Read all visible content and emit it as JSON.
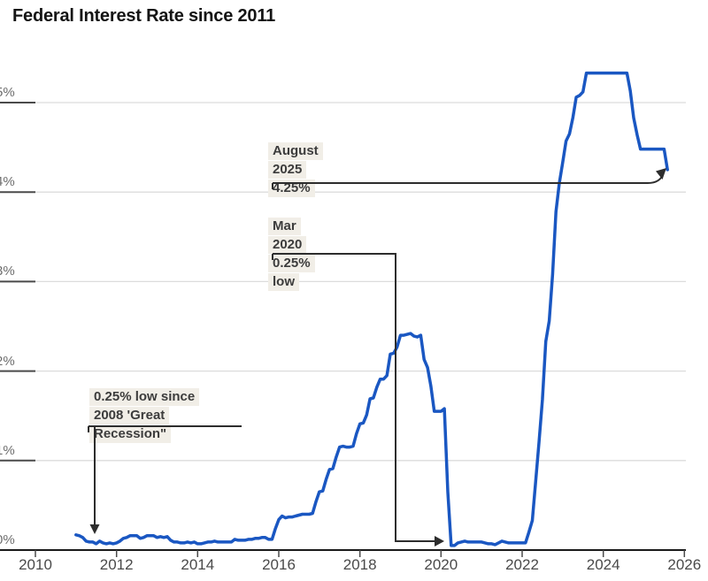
{
  "title": "Federal Interest Rate since 2011",
  "colors": {
    "line": "#1a57c2",
    "grid": "#dcdcdc",
    "axis": "#1a1a1a",
    "tick_segment": "#4a4a4a",
    "y_tick_label": "#6e6e6e",
    "x_tick_label": "#4a4a4a",
    "connector": "#2d2d2d",
    "annotation_text": "#3c3c3c",
    "annotation_bg": "#f1eee7",
    "title_text": "#141414"
  },
  "chart_data": {
    "type": "line",
    "title": "Federal Interest Rate since 2011",
    "xlabel": "",
    "ylabel": "",
    "x_range": [
      2010,
      2026
    ],
    "y_range": [
      0,
      5.5
    ],
    "grid": "horizontal",
    "legend": "none",
    "x_ticks": [
      {
        "label": "2010",
        "value": 2010
      },
      {
        "label": "2012",
        "value": 2012
      },
      {
        "label": "2014",
        "value": 2014
      },
      {
        "label": "2016",
        "value": 2016
      },
      {
        "label": "2018",
        "value": 2018
      },
      {
        "label": "2020",
        "value": 2020
      },
      {
        "label": "2022",
        "value": 2022
      },
      {
        "label": "2024",
        "value": 2024
      },
      {
        "label": "2026",
        "value": 2026
      }
    ],
    "y_ticks": [
      {
        "label": "0%",
        "value": 0
      },
      {
        "label": "1%",
        "value": 1
      },
      {
        "label": "2%",
        "value": 2
      },
      {
        "label": "3%",
        "value": 3
      },
      {
        "label": "4%",
        "value": 4
      },
      {
        "label": "5%",
        "value": 5
      }
    ],
    "series": [
      {
        "name": "Federal interest rate (%)",
        "frequency": "monthly",
        "start_month": "2011-01",
        "end_month": "2025-08",
        "values": [
          0.17,
          0.16,
          0.14,
          0.1,
          0.09,
          0.09,
          0.07,
          0.1,
          0.08,
          0.07,
          0.08,
          0.07,
          0.08,
          0.1,
          0.13,
          0.14,
          0.16,
          0.16,
          0.16,
          0.13,
          0.14,
          0.16,
          0.16,
          0.16,
          0.14,
          0.15,
          0.14,
          0.15,
          0.11,
          0.09,
          0.09,
          0.08,
          0.08,
          0.09,
          0.08,
          0.09,
          0.07,
          0.07,
          0.08,
          0.09,
          0.09,
          0.1,
          0.09,
          0.09,
          0.09,
          0.09,
          0.09,
          0.12,
          0.11,
          0.11,
          0.11,
          0.12,
          0.12,
          0.13,
          0.13,
          0.14,
          0.14,
          0.12,
          0.12,
          0.24,
          0.34,
          0.38,
          0.36,
          0.37,
          0.37,
          0.38,
          0.39,
          0.4,
          0.4,
          0.4,
          0.41,
          0.54,
          0.65,
          0.66,
          0.79,
          0.9,
          0.91,
          1.04,
          1.15,
          1.16,
          1.15,
          1.15,
          1.16,
          1.3,
          1.41,
          1.42,
          1.51,
          1.69,
          1.7,
          1.82,
          1.91,
          1.91,
          1.95,
          2.19,
          2.2,
          2.27,
          2.4,
          2.4,
          2.41,
          2.42,
          2.39,
          2.38,
          2.4,
          2.13,
          2.04,
          1.83,
          1.55,
          1.55,
          1.55,
          1.58,
          0.65,
          0.05,
          0.05,
          0.08,
          0.09,
          0.1,
          0.09,
          0.09,
          0.09,
          0.09,
          0.09,
          0.08,
          0.07,
          0.07,
          0.06,
          0.08,
          0.1,
          0.09,
          0.08,
          0.08,
          0.08,
          0.08,
          0.08,
          0.08,
          0.2,
          0.33,
          0.77,
          1.21,
          1.68,
          2.33,
          2.56,
          3.08,
          3.78,
          4.1,
          4.33,
          4.57,
          4.65,
          4.83,
          5.06,
          5.08,
          5.12,
          5.33,
          5.33,
          5.33,
          5.33,
          5.33,
          5.33,
          5.33,
          5.33,
          5.33,
          5.33,
          5.33,
          5.33,
          5.33,
          5.13,
          4.83,
          4.64,
          4.48,
          4.48,
          4.48,
          4.48,
          4.48,
          4.48,
          4.48,
          4.48,
          4.25
        ]
      }
    ],
    "annotations": [
      {
        "id": "low-2011",
        "lines": [
          "0.25% low since",
          "2008 'Great",
          "Recession\""
        ],
        "points_to": {
          "date": "2011-07",
          "value": 0.1
        }
      },
      {
        "id": "mar-2020",
        "lines": [
          "Mar",
          "2020",
          "0.25%",
          "low"
        ],
        "points_to": {
          "date": "2020-03",
          "value": 0.25
        }
      },
      {
        "id": "aug-2025",
        "lines": [
          "August",
          "2025",
          "4.25%"
        ],
        "points_to": {
          "date": "2025-08",
          "value": 4.25
        }
      }
    ]
  }
}
